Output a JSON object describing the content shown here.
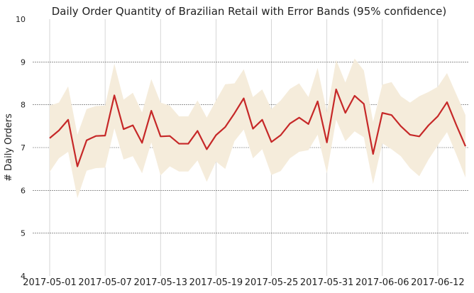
{
  "chart_data": {
    "type": "line",
    "title": "Daily Order Quantity of Brazilian Retail with Error Bands (95% confidence)",
    "xlabel": "",
    "ylabel": "# Daily Orders",
    "ylim": [
      4,
      10
    ],
    "yticks": [
      "4",
      "5",
      "6",
      "7",
      "8",
      "9",
      "10"
    ],
    "xticks": [
      "2017-05-01",
      "2017-05-07",
      "2017-05-13",
      "2017-05-19",
      "2017-05-25",
      "2017-05-31",
      "2017-06-06",
      "2017-06-12"
    ],
    "grid": true,
    "x": [
      "2017-05-01",
      "2017-05-02",
      "2017-05-03",
      "2017-05-04",
      "2017-05-05",
      "2017-05-06",
      "2017-05-07",
      "2017-05-08",
      "2017-05-09",
      "2017-05-10",
      "2017-05-11",
      "2017-05-12",
      "2017-05-13",
      "2017-05-14",
      "2017-05-15",
      "2017-05-16",
      "2017-05-17",
      "2017-05-18",
      "2017-05-19",
      "2017-05-20",
      "2017-05-21",
      "2017-05-22",
      "2017-05-23",
      "2017-05-24",
      "2017-05-25",
      "2017-05-26",
      "2017-05-27",
      "2017-05-28",
      "2017-05-29",
      "2017-05-30",
      "2017-05-31",
      "2017-06-01",
      "2017-06-02",
      "2017-06-03",
      "2017-06-04",
      "2017-06-05",
      "2017-06-06",
      "2017-06-07",
      "2017-06-08",
      "2017-06-09",
      "2017-06-10",
      "2017-06-11",
      "2017-06-12",
      "2017-06-13",
      "2017-06-14",
      "2017-06-15"
    ],
    "series": [
      {
        "values": [
          7.22,
          7.4,
          7.65,
          6.56,
          7.17,
          7.27,
          7.28,
          8.22,
          7.43,
          7.52,
          7.11,
          7.86,
          7.26,
          7.27,
          7.09,
          7.09,
          7.39,
          6.96,
          7.29,
          7.48,
          7.8,
          8.15,
          7.44,
          7.65,
          7.13,
          7.29,
          7.56,
          7.7,
          7.55,
          8.08,
          7.12,
          8.36,
          7.81,
          8.21,
          8.02,
          6.85,
          7.81,
          7.76,
          7.5,
          7.3,
          7.26,
          7.52,
          7.73,
          8.06,
          7.53,
          7.03
        ],
        "lower": [
          6.43,
          6.75,
          6.9,
          5.82,
          6.46,
          6.52,
          6.53,
          7.45,
          6.72,
          6.8,
          6.4,
          7.12,
          6.35,
          6.56,
          6.44,
          6.44,
          6.7,
          6.2,
          6.67,
          6.5,
          7.15,
          7.42,
          6.75,
          6.96,
          6.36,
          6.45,
          6.75,
          6.9,
          6.94,
          7.3,
          6.4,
          7.65,
          7.15,
          7.38,
          7.24,
          6.15,
          7.1,
          6.96,
          6.8,
          6.52,
          6.33,
          6.72,
          7.05,
          7.36,
          6.84,
          6.3
        ],
        "upper": [
          7.98,
          8.05,
          8.43,
          7.3,
          7.9,
          7.97,
          7.98,
          8.96,
          8.12,
          8.28,
          7.82,
          8.6,
          8.05,
          7.98,
          7.73,
          7.73,
          8.1,
          7.7,
          8.1,
          8.48,
          8.5,
          8.83,
          8.18,
          8.36,
          7.9,
          8.1,
          8.37,
          8.5,
          8.18,
          8.86,
          7.82,
          9.05,
          8.52,
          9.08,
          8.8,
          7.6,
          8.47,
          8.53,
          8.2,
          8.05,
          8.2,
          8.3,
          8.42,
          8.74,
          8.25,
          7.76
        ]
      }
    ],
    "colors": {
      "line": "#c62828",
      "band": "#f5ecdb",
      "vgrid": "#cccccc",
      "hgrid": "#555555",
      "text": "#222222"
    }
  }
}
